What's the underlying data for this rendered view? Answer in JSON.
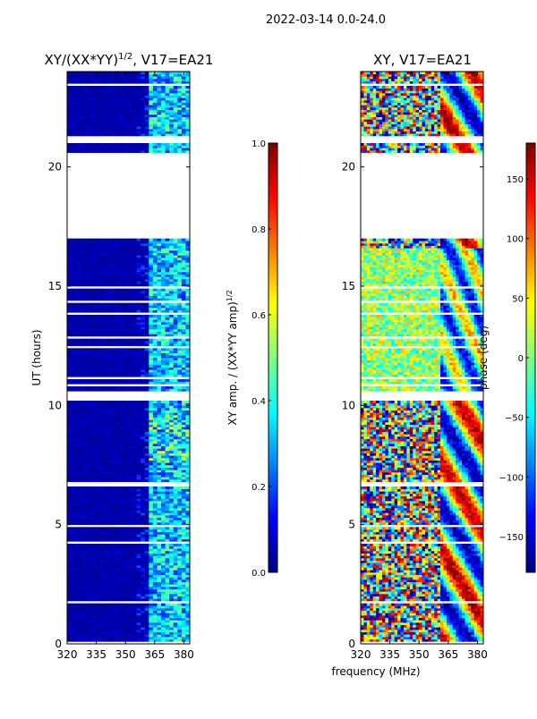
{
  "suptitle": "2022-03-14 0.0-24.0",
  "shared": {
    "xlabel": "frequency (MHz)",
    "ylabel": "UT (hours)",
    "x_ticks": [
      "320",
      "335",
      "350",
      "365",
      "380"
    ],
    "y_ticks": [
      "0",
      "5",
      "10",
      "15",
      "20"
    ]
  },
  "chart_data": [
    {
      "type": "heatmap",
      "title": "XY/(XX*YY)",
      "title_exponent": "1/2",
      "title_suffix": ", V17=EA21",
      "xlabel": "frequency (MHz)",
      "ylabel": "UT (hours)",
      "xlim": [
        320,
        383
      ],
      "ylim": [
        0,
        24
      ],
      "colorbar": {
        "label": "XY amp. / (XX*YY amp)",
        "label_exponent": "1/2",
        "range": [
          0.0,
          1.0
        ],
        "ticks": [
          "0.0",
          "0.2",
          "0.4",
          "0.6",
          "0.8",
          "1.0"
        ]
      },
      "data_gaps_hours": [
        [
          16.9,
          20.6
        ],
        [
          10.1,
          10.5
        ],
        [
          6.5,
          6.7
        ],
        [
          21.0,
          21.3
        ]
      ],
      "bright_band_mhz": [
        361,
        383
      ]
    },
    {
      "type": "heatmap",
      "title": "XY, V17=EA21",
      "xlabel": "frequency (MHz)",
      "ylabel": "UT (hours)",
      "xlim": [
        320,
        383
      ],
      "ylim": [
        0,
        24
      ],
      "colorbar": {
        "label": "phase (deg)",
        "range": [
          -180,
          180
        ],
        "ticks": [
          "−150",
          "−100",
          "−50",
          "0",
          "50",
          "100",
          "150"
        ]
      },
      "data_gaps_hours": [
        [
          16.9,
          20.6
        ],
        [
          10.1,
          10.5
        ],
        [
          6.5,
          6.7
        ],
        [
          21.0,
          21.3
        ]
      ]
    }
  ],
  "colors": {
    "background": "#ffffff",
    "low": "#00007f",
    "high": "#7f0000"
  }
}
